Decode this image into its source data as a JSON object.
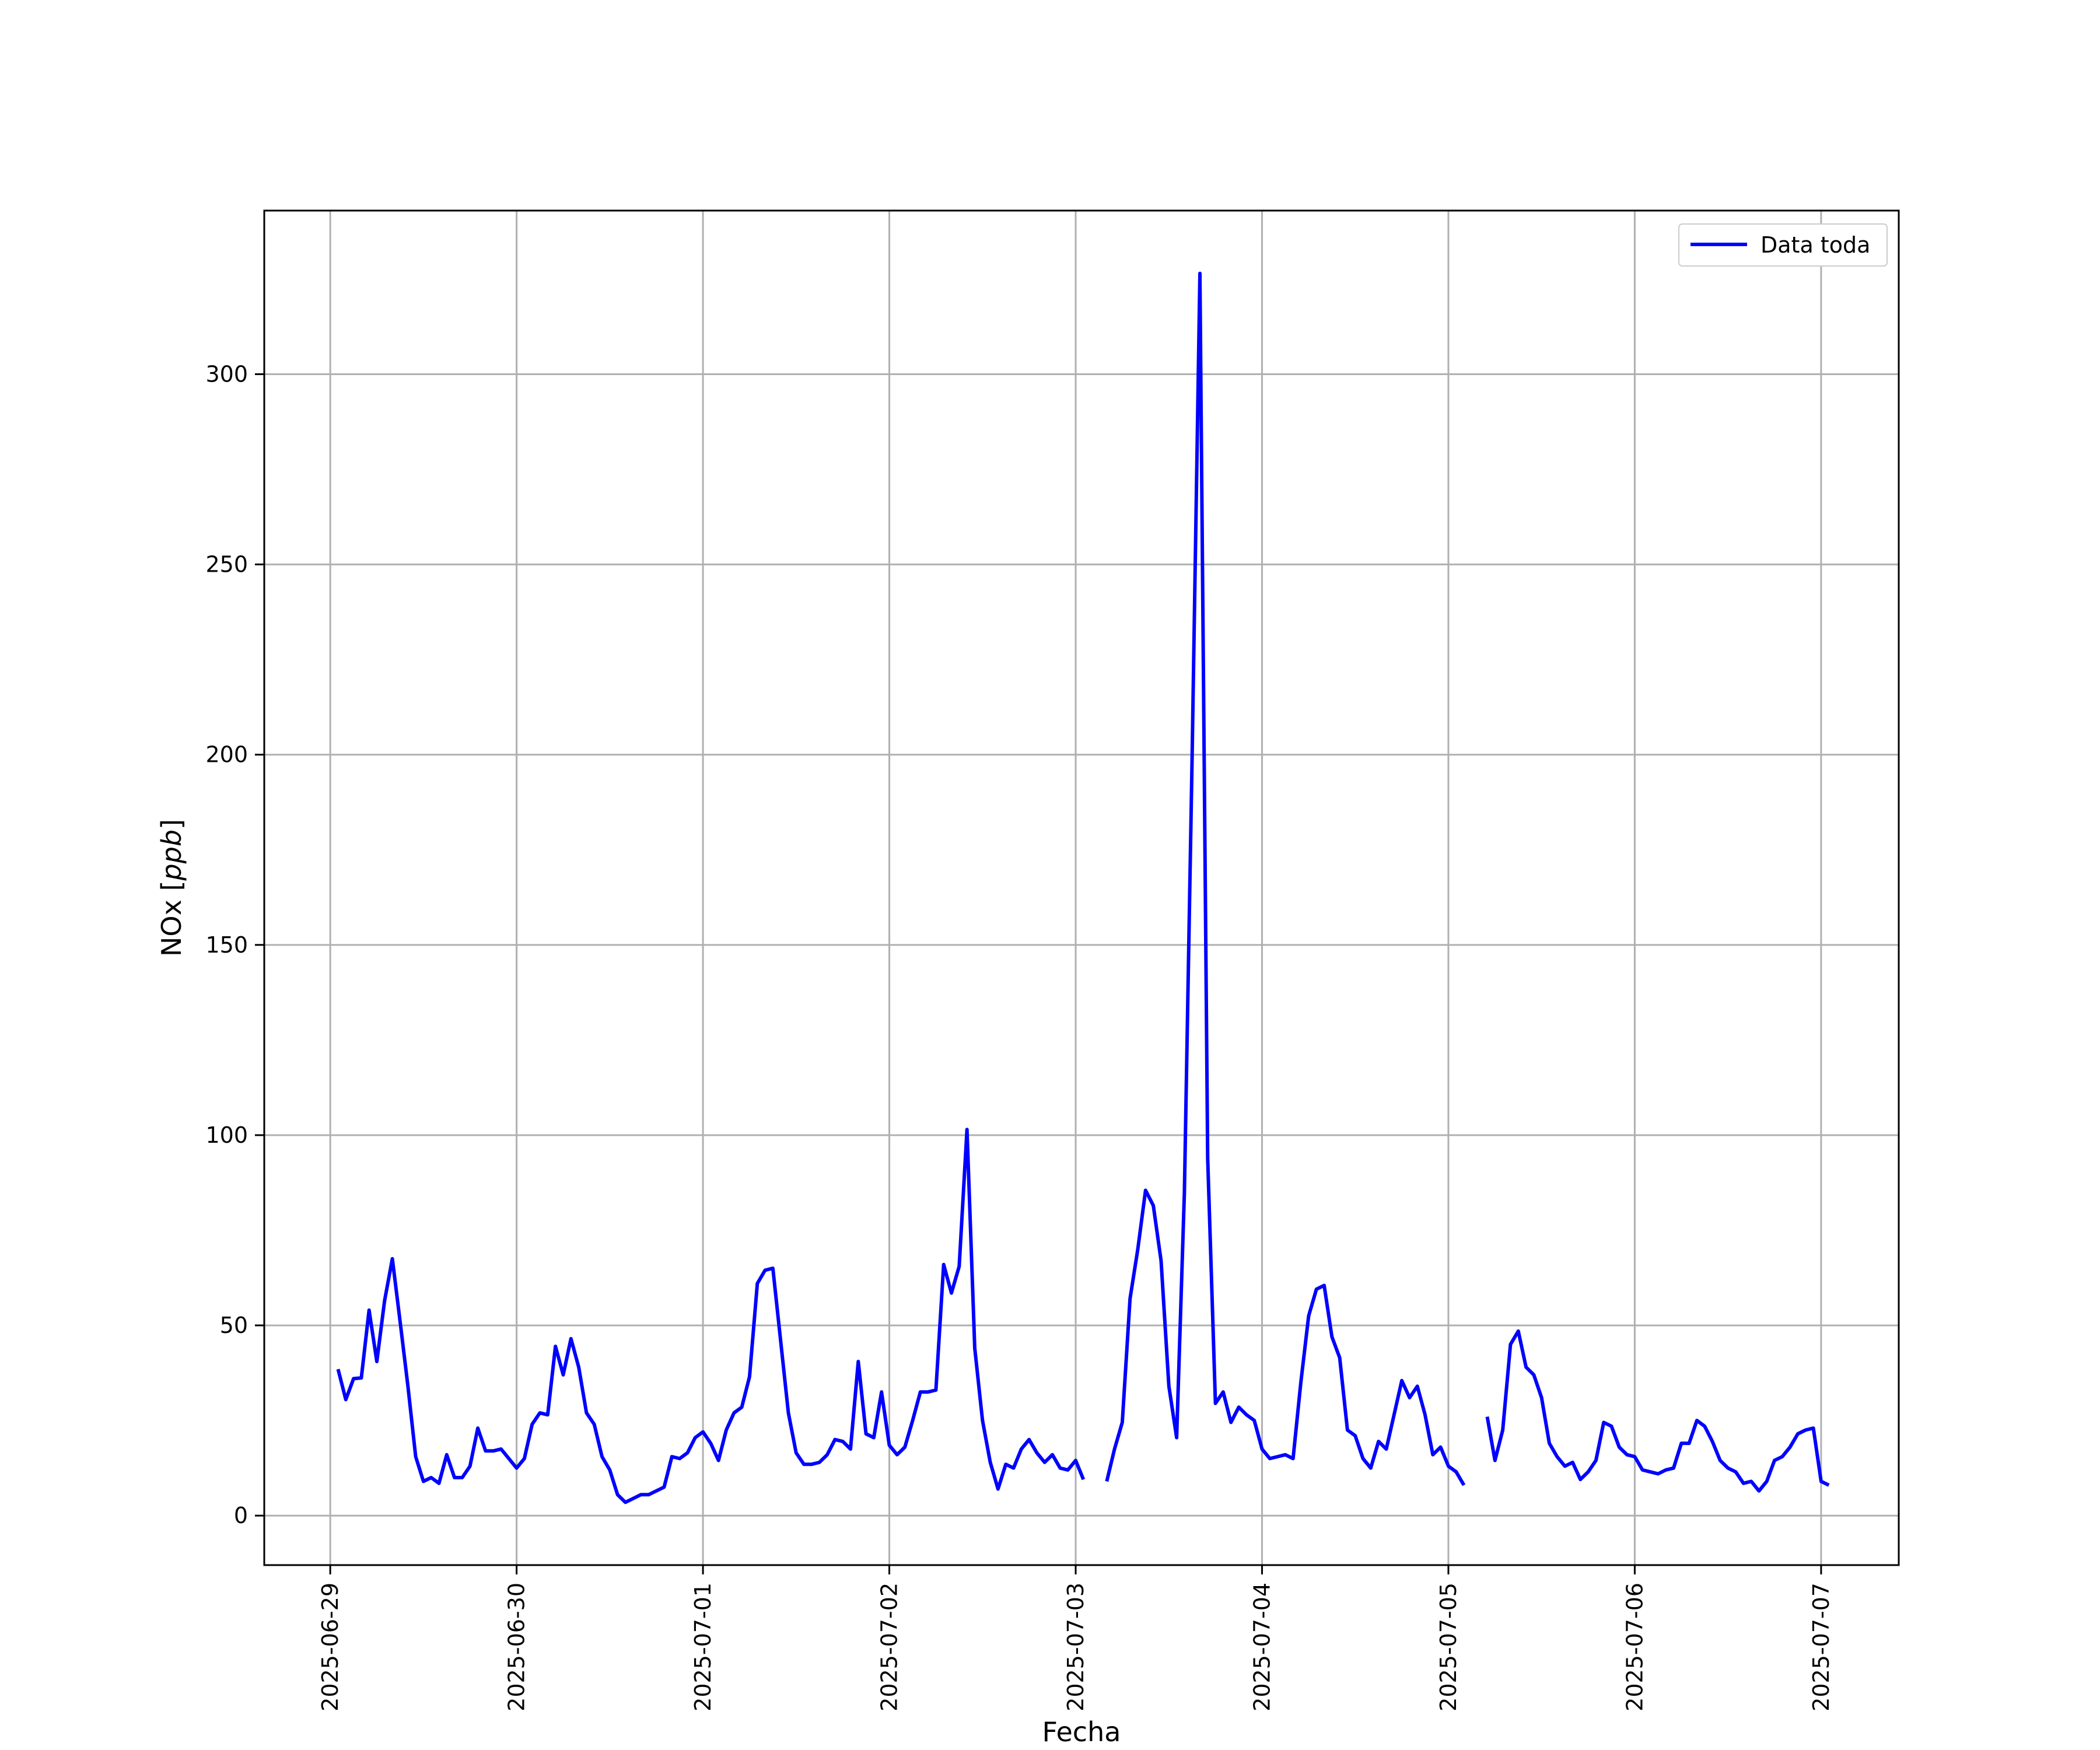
{
  "chart_data": {
    "type": "line",
    "xlabel": "Fecha",
    "ylabel_text": "NOx [",
    "ylabel_unit": "ppb",
    "ylabel_close": "]",
    "ylim": [
      -13,
      343
    ],
    "xlim": [
      "2025-06-28T15:30",
      "2025-07-07T10:00"
    ],
    "yticks": [
      0,
      50,
      100,
      150,
      200,
      250,
      300
    ],
    "xticks": [
      "2025-06-29",
      "2025-06-30",
      "2025-07-01",
      "2025-07-02",
      "2025-07-03",
      "2025-07-04",
      "2025-07-05",
      "2025-07-06",
      "2025-07-07"
    ],
    "grid": true,
    "legend": {
      "position": "top-right",
      "label": "Data toda"
    },
    "series": [
      {
        "name": "Data toda",
        "color": "#0000ff",
        "segments": [
          {
            "start": "2025-06-29T01:00",
            "step_hours": 1,
            "values": [
              38.5,
              30.5,
              36,
              36.2,
              54,
              40.5,
              56.5,
              67.5,
              51,
              34,
              15.5,
              9,
              10,
              8.5,
              16,
              10,
              10,
              13,
              23,
              17,
              17,
              17.5,
              15,
              12.5,
              15,
              24,
              27,
              26.5,
              44.5,
              37,
              46.5,
              39,
              27,
              24,
              15.5,
              12,
              5.5,
              3.5,
              4.5,
              5.5,
              5.5,
              6.5,
              7.5,
              15.5,
              15,
              16.5,
              20.5,
              22,
              19,
              14.5,
              22.5,
              27,
              28.5,
              36.5,
              61,
              64.5,
              65,
              46,
              27,
              16.5,
              13.5,
              13.5,
              14,
              16,
              20,
              19.5,
              17.5,
              40.5,
              21.5,
              20.5,
              32.5,
              18.5,
              16,
              18,
              25,
              32.5,
              32.5,
              33,
              66,
              58.5,
              65.5,
              101.5,
              44,
              25,
              14,
              7,
              13.5,
              12.5,
              17.5,
              20,
              16.5,
              14,
              16,
              12.5,
              12,
              14.5,
              9.5
            ]
          },
          {
            "start": "2025-07-03T04:00",
            "step_hours": 1,
            "values": [
              9,
              17.5,
              24.5,
              57,
              70,
              85.5,
              81.5,
              67,
              34,
              20.5,
              85,
              200,
              326.5,
              94,
              29.5,
              32.5,
              24.5,
              28.5,
              26.5,
              25,
              17.5,
              15,
              15.5,
              16,
              15,
              35,
              52.5,
              59.5,
              60.5,
              47,
              41.5,
              22.5,
              21,
              15,
              12.5,
              19.5,
              17.5,
              26.5,
              35.5,
              31,
              34,
              26.5,
              16,
              18,
              13,
              11.5,
              8
            ]
          },
          {
            "start": "2025-07-05T05:00",
            "step_hours": 1,
            "values": [
              26,
              14.5,
              22.5,
              45,
              48.5,
              39,
              37,
              31,
              19,
              15.5,
              13,
              14,
              9.5,
              11.5,
              14.5,
              24.5,
              23.5,
              18,
              16,
              15.5,
              12,
              11.5,
              11,
              12,
              12.5,
              19,
              19,
              25,
              23.5,
              19.5,
              14.5,
              12.5,
              11.5,
              8.5,
              9,
              6.5,
              9,
              14.5,
              15.5,
              18,
              21.5,
              22.5,
              23,
              9,
              8
            ]
          }
        ]
      }
    ]
  }
}
